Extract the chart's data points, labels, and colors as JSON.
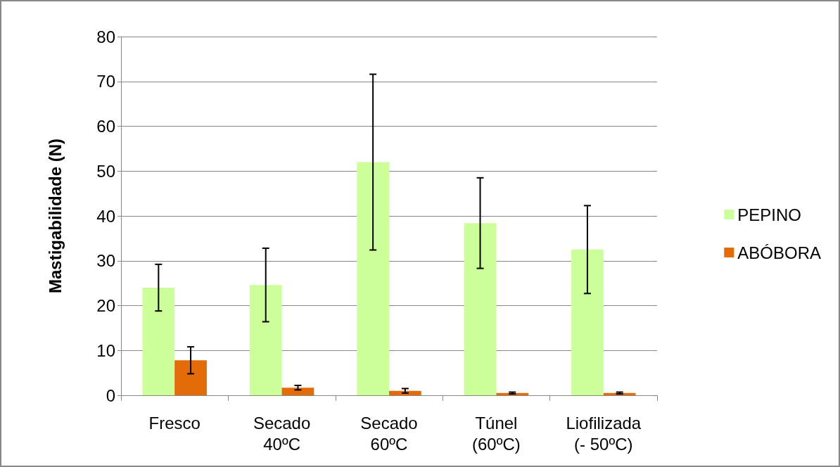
{
  "chart_data": {
    "type": "bar",
    "ylabel": "Mastigabilidade (N)",
    "categories": [
      "Fresco",
      "Secado\n40ºC",
      "Secado\n60ºC",
      "Túnel\n(60ºC)",
      "Liofilizada\n(- 50ºC)"
    ],
    "series": [
      {
        "name": "PEPINO",
        "color": "#ccff99",
        "values": [
          24.0,
          24.6,
          52.0,
          38.4,
          32.5
        ],
        "errors": [
          5.2,
          8.2,
          19.6,
          10.1,
          9.8
        ]
      },
      {
        "name": "ABÓBORA",
        "color": "#e36c09",
        "values": [
          7.8,
          1.7,
          1.0,
          0.5,
          0.5
        ],
        "errors": [
          3.0,
          0.5,
          0.5,
          0.2,
          0.2
        ]
      }
    ],
    "ylim": [
      0,
      80
    ],
    "yticks": [
      0,
      10,
      20,
      30,
      40,
      50,
      60,
      70,
      80
    ],
    "grid": "y",
    "legend": "right"
  }
}
